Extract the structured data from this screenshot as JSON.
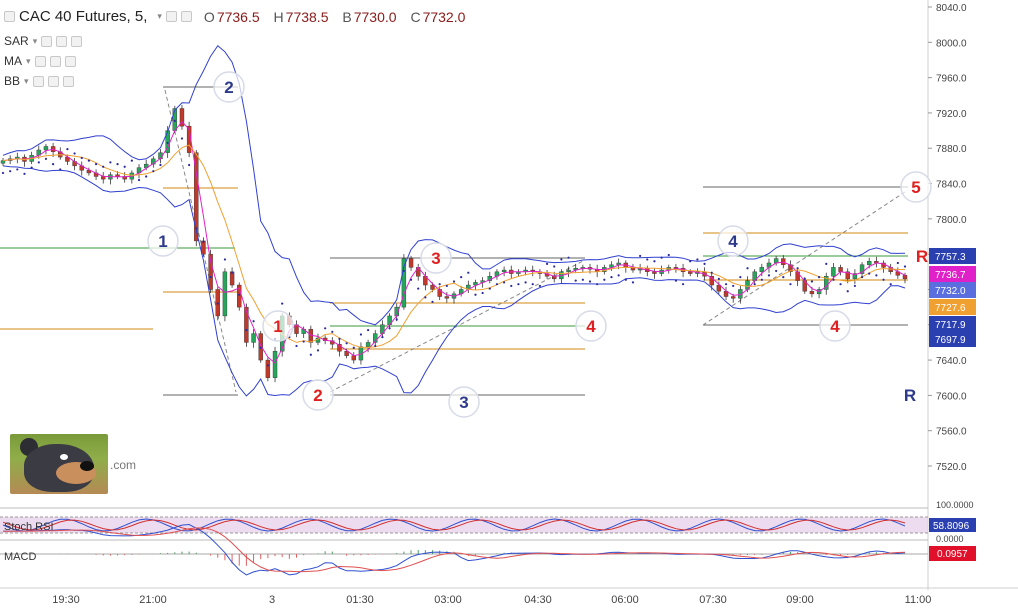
{
  "header": {
    "title": "CAC 40 Futures, 5,",
    "open_label": "O",
    "open": "7736.5",
    "high_label": "H",
    "high": "7738.5",
    "low_label": "B",
    "low": "7730.0",
    "close_label": "C",
    "close": "7732.0"
  },
  "indicators": [
    {
      "name": "SAR"
    },
    {
      "name": "MA"
    },
    {
      "name": "BB"
    }
  ],
  "brand_text": ".com",
  "chart_data": {
    "type": "candlestick",
    "y_ticks": [
      "8040.0",
      "8000.0",
      "7960.0",
      "7920.0",
      "7880.0",
      "7840.0",
      "7800.0",
      "7760.0",
      "7720.0",
      "7680.0",
      "7640.0",
      "7600.0",
      "7560.0",
      "7520.0"
    ],
    "ylim": [
      7505,
      8045
    ],
    "x_ticks": [
      "19:30",
      "21:00",
      "3",
      "01:30",
      "03:00",
      "04:30",
      "06:00",
      "07:30",
      "09:00",
      "11:00"
    ],
    "price_labels": [
      {
        "value": "7757.3",
        "color": "#2a3fb0"
      },
      {
        "value": "7736.7",
        "color": "#e020c8"
      },
      {
        "value": "7732.0",
        "color": "#5b6ee0"
      },
      {
        "value": "7727.6",
        "color": "#f0a030"
      },
      {
        "value": "7717.9",
        "color": "#2a3fb0"
      },
      {
        "value": "7697.9",
        "color": "#2a3fb0"
      }
    ],
    "wave_labels": [
      {
        "text": "1",
        "color": "#2d3a8c",
        "circled": true
      },
      {
        "text": "2",
        "color": "#2d3a8c",
        "circled": true
      },
      {
        "text": "1",
        "color": "#e02020",
        "circled": true
      },
      {
        "text": "2",
        "color": "#e02020",
        "circled": true
      },
      {
        "text": "3",
        "color": "#e02020",
        "circled": true
      },
      {
        "text": "3",
        "color": "#2d3a8c",
        "circled": true
      },
      {
        "text": "4",
        "color": "#e02020",
        "circled": true
      },
      {
        "text": "4",
        "color": "#2d3a8c",
        "circled": true
      },
      {
        "text": "4",
        "color": "#e02020",
        "circled": true
      },
      {
        "text": "5",
        "color": "#e02020",
        "circled": true
      },
      {
        "text": "R",
        "color": "#e02020",
        "circled": false
      },
      {
        "text": "R",
        "color": "#2d3a8c",
        "circled": false
      }
    ],
    "candles_close": [
      7866,
      7868,
      7870,
      7865,
      7872,
      7878,
      7882,
      7876,
      7870,
      7865,
      7860,
      7855,
      7852,
      7848,
      7845,
      7850,
      7848,
      7845,
      7852,
      7858,
      7862,
      7868,
      7875,
      7900,
      7925,
      7905,
      7875,
      7775,
      7760,
      7720,
      7690,
      7740,
      7725,
      7700,
      7660,
      7670,
      7640,
      7620,
      7650,
      7690,
      7680,
      7670,
      7675,
      7660,
      7665,
      7662,
      7658,
      7650,
      7645,
      7640,
      7655,
      7660,
      7670,
      7680,
      7690,
      7700,
      7755,
      7745,
      7735,
      7725,
      7720,
      7712,
      7710,
      7715,
      7720,
      7725,
      7728,
      7730,
      7735,
      7740,
      7742,
      7738,
      7740,
      7742,
      7740,
      7738,
      7735,
      7732,
      7740,
      7742,
      7744,
      7745,
      7743,
      7740,
      7745,
      7748,
      7750,
      7745,
      7742,
      7744,
      7740,
      7738,
      7742,
      7745,
      7744,
      7740,
      7738,
      7740,
      7735,
      7725,
      7718,
      7712,
      7710,
      7720,
      7730,
      7740,
      7745,
      7750,
      7755,
      7748,
      7740,
      7730,
      7718,
      7715,
      7720,
      7735,
      7745,
      7740,
      7732,
      7738,
      7748,
      7752,
      7750,
      7745,
      7740,
      7736,
      7732
    ],
    "stoch_rsi": {
      "value": "58.8096",
      "ticks": [
        "100.0000",
        "0.0000"
      ]
    },
    "macd": {
      "value": "0.0957"
    },
    "colors": {
      "up": "#26a65b",
      "down": "#c0392b",
      "bb": "#3040d0",
      "ma1": "#e020c8",
      "ma2": "#f0a030",
      "sar": "#2a2aa0"
    }
  }
}
